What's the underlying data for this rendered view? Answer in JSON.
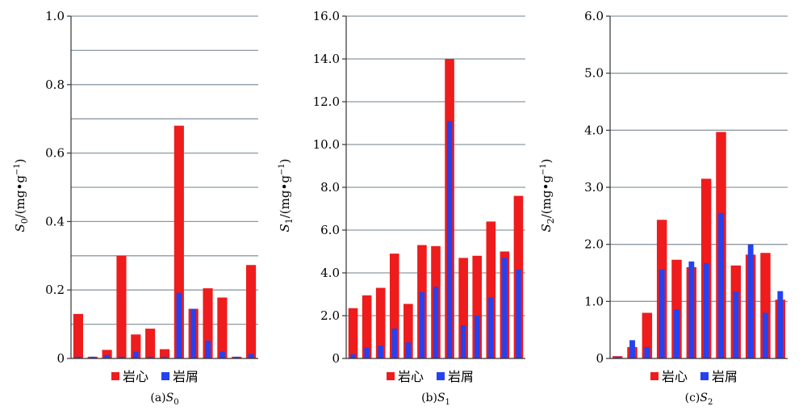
{
  "colors": {
    "core": "#ee1c1c",
    "cuttings": "#2442f0",
    "grid": "#8c9aa3",
    "axis": "#333333"
  },
  "chart_data": [
    {
      "type": "bar",
      "caption_prefix": "(a)",
      "caption_symbol": "S",
      "caption_sub": "0",
      "ylabel_symbol": "S",
      "ylabel_sub": "0",
      "ylabel_unit_open": "/(mg•g",
      "ylabel_sup": "−1",
      "ylabel_unit_close": ")",
      "ylim": [
        0,
        1.0
      ],
      "ytick_labels": [
        "0",
        "0.2",
        "0.4",
        "0.6",
        "0.8",
        "1.0"
      ],
      "yticks": [
        0,
        0.2,
        0.4,
        0.6,
        0.8,
        1.0
      ],
      "grid_step": 0.1,
      "grid": true,
      "legend_position": "bottom",
      "series": [
        {
          "name": "岩心",
          "values": [
            0.13,
            0.005,
            0.025,
            0.3,
            0.07,
            0.087,
            0.027,
            0.68,
            0.145,
            0.205,
            0.178,
            0.005,
            0.273
          ]
        },
        {
          "name": "岩屑",
          "values": [
            0.005,
            0.005,
            0.01,
            0.005,
            0.02,
            0.005,
            0.005,
            0.192,
            0.145,
            0.052,
            0.02,
            0.005,
            0.013
          ]
        }
      ]
    },
    {
      "type": "bar",
      "caption_prefix": "(b)",
      "caption_symbol": "S",
      "caption_sub": "1",
      "ylabel_symbol": "S",
      "ylabel_sub": "1",
      "ylabel_unit_open": "/(mg•g",
      "ylabel_sup": "−1",
      "ylabel_unit_close": ")",
      "ylim": [
        0,
        16.0
      ],
      "ytick_labels": [
        "0",
        "2.0",
        "4.0",
        "6.0",
        "8.0",
        "10.0",
        "12.0",
        "14.0",
        "16.0"
      ],
      "yticks": [
        0,
        2,
        4,
        6,
        8,
        10,
        12,
        14,
        16
      ],
      "grid_step": 2,
      "grid": true,
      "legend_position": "bottom",
      "series": [
        {
          "name": "岩心",
          "values": [
            2.35,
            2.95,
            3.3,
            4.9,
            2.55,
            5.3,
            5.25,
            14.0,
            4.7,
            4.8,
            6.4,
            5.0,
            7.6
          ]
        },
        {
          "name": "岩屑",
          "values": [
            0.2,
            0.5,
            0.6,
            1.4,
            0.75,
            3.1,
            3.35,
            11.1,
            1.55,
            2.0,
            2.85,
            4.7,
            4.15
          ]
        }
      ]
    },
    {
      "type": "bar",
      "caption_prefix": "(c)",
      "caption_symbol": "S",
      "caption_sub": "2",
      "ylabel_symbol": "S",
      "ylabel_sub": "2",
      "ylabel_unit_open": "/(mg•g",
      "ylabel_sup": "−1",
      "ylabel_unit_close": ")",
      "ylim": [
        0,
        6.0
      ],
      "ytick_labels": [
        "0",
        "1.0",
        "2.0",
        "3.0",
        "4.0",
        "5.0",
        "6.0"
      ],
      "yticks": [
        0,
        1,
        2,
        3,
        4,
        5,
        6
      ],
      "grid_step": 1,
      "grid": true,
      "legend_position": "bottom",
      "series": [
        {
          "name": "岩心",
          "values": [
            0.04,
            0.2,
            0.8,
            2.43,
            1.73,
            1.6,
            3.15,
            3.97,
            1.63,
            1.82,
            1.85,
            1.03
          ]
        },
        {
          "name": "岩屑",
          "values": [
            0.03,
            0.32,
            0.2,
            1.56,
            0.86,
            1.7,
            1.67,
            2.55,
            1.17,
            2.0,
            0.8,
            1.18
          ]
        }
      ]
    }
  ]
}
